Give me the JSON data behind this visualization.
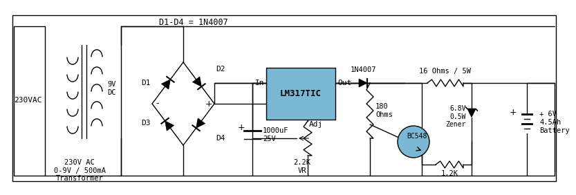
{
  "bg_color": "#ffffff",
  "line_color": "#000000",
  "lm317_fill": "#7ab8d4",
  "transistor_fill": "#7ab8d4",
  "title_text": "D1-D4 = 1N4007",
  "transformer_label": "230V AC\n0-9V / 500mA\nTransformer",
  "ac_label": "230VAC",
  "dc_label": "9V\nDC",
  "lm317_label": "LM317TIC",
  "capacitor_label": "1000uF\n25V",
  "vr_label": "2.2K\nVR",
  "resistor1_label": "180\nOhms",
  "diode_label": "1N4007",
  "resistor2_label": "16 Ohms / 5W",
  "zener_label": "6.8V\n0.5W\nZener",
  "transistor_label": "BC548",
  "resistor3_label": "1.2K",
  "battery_label": "+ 6V\n4.5Ah\nBattery",
  "d1_label": "D1",
  "d2_label": "D2",
  "d3_label": "D3",
  "d4_label": "D4",
  "in_label": "In",
  "out_label": "Out",
  "adj_label": "Adj",
  "plus_label": "+",
  "minus_label": "-"
}
